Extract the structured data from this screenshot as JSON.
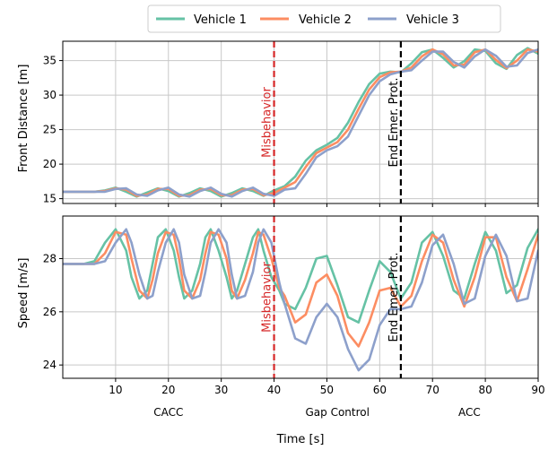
{
  "chart_data": {
    "type": "line",
    "xlabel": "Time [s]",
    "xlim": [
      0,
      90
    ],
    "xticks": [
      10,
      20,
      30,
      40,
      50,
      60,
      70,
      80,
      90
    ],
    "legend": {
      "placement": "top-center",
      "entries": [
        "Vehicle 1",
        "Vehicle 2",
        "Vehicle 3"
      ]
    },
    "colors": {
      "Vehicle 1": "#66c2a5",
      "Vehicle 2": "#fc8d62",
      "Vehicle 3": "#8da0cb",
      "misbehavior_line": "#d62728",
      "end_emergency_line": "#000000",
      "grid": "#c8c8c8"
    },
    "grid": true,
    "phases": [
      {
        "label": "CACC",
        "x": 20
      },
      {
        "label": "Gap Control",
        "x": 52
      },
      {
        "label": "ACC",
        "x": 77
      }
    ],
    "events": [
      {
        "label": "Misbehavior",
        "x": 40,
        "style": "dashed",
        "color": "#d62728"
      },
      {
        "label": "End Emer. Prot.",
        "x": 64,
        "style": "dashed",
        "color": "#000000"
      }
    ],
    "panels": [
      {
        "name": "front-distance",
        "ylabel": "Front Distance [m]",
        "ylim": [
          14.3,
          37.8
        ],
        "yticks": [
          15,
          20,
          25,
          30,
          35
        ],
        "series": [
          {
            "name": "Vehicle 1",
            "x": [
              0,
              2,
              4,
              6,
              8,
              10,
              12,
              14,
              16,
              18,
              20,
              22,
              24,
              26,
              28,
              30,
              32,
              34,
              36,
              38,
              40,
              42,
              44,
              46,
              48,
              50,
              52,
              54,
              56,
              58,
              60,
              62,
              64,
              66,
              68,
              70,
              72,
              74,
              76,
              78,
              80,
              82,
              84,
              86,
              88,
              90
            ],
            "y": [
              16.0,
              16.0,
              16.0,
              16.0,
              16.2,
              16.6,
              16.0,
              15.3,
              15.9,
              16.5,
              16.1,
              15.3,
              15.8,
              16.5,
              16.1,
              15.3,
              15.8,
              16.5,
              16.1,
              15.4,
              16.2,
              16.8,
              18.2,
              20.5,
              22.0,
              22.8,
              23.8,
              26.0,
              29.0,
              31.6,
              33.1,
              33.4,
              33.3,
              34.6,
              36.2,
              36.6,
              35.4,
              34.0,
              34.9,
              36.6,
              36.4,
              34.6,
              33.8,
              35.8,
              36.8,
              36.0
            ]
          },
          {
            "name": "Vehicle 2",
            "x": [
              0,
              2,
              4,
              6,
              8,
              10,
              12,
              14,
              16,
              18,
              20,
              22,
              24,
              26,
              28,
              30,
              32,
              34,
              36,
              38,
              40,
              42,
              44,
              46,
              48,
              50,
              52,
              54,
              56,
              58,
              60,
              62,
              64,
              66,
              68,
              70,
              72,
              74,
              76,
              78,
              80,
              82,
              84,
              86,
              88,
              90
            ],
            "y": [
              16.0,
              16.0,
              16.0,
              16.0,
              16.1,
              16.5,
              16.3,
              15.4,
              15.6,
              16.4,
              16.4,
              15.4,
              15.5,
              16.3,
              16.4,
              15.5,
              15.5,
              16.3,
              16.4,
              15.5,
              15.8,
              16.6,
              17.4,
              19.6,
              21.6,
              22.4,
              23.2,
              25.0,
              28.0,
              30.8,
              32.6,
              33.3,
              33.4,
              34.0,
              35.6,
              36.6,
              35.9,
              34.3,
              34.4,
              36.2,
              36.6,
              35.1,
              33.9,
              35.0,
              36.6,
              36.3
            ]
          },
          {
            "name": "Vehicle 3",
            "x": [
              0,
              2,
              4,
              6,
              8,
              10,
              12,
              14,
              16,
              18,
              20,
              22,
              24,
              26,
              28,
              30,
              32,
              34,
              36,
              38,
              40,
              42,
              44,
              46,
              48,
              50,
              52,
              54,
              56,
              58,
              60,
              62,
              64,
              66,
              68,
              70,
              72,
              74,
              76,
              78,
              80,
              82,
              84,
              86,
              88,
              90
            ],
            "y": [
              16.0,
              16.0,
              16.0,
              16.0,
              16.0,
              16.4,
              16.5,
              15.6,
              15.4,
              16.2,
              16.6,
              15.6,
              15.3,
              16.1,
              16.6,
              15.7,
              15.3,
              16.1,
              16.6,
              15.7,
              15.4,
              16.3,
              16.5,
              18.6,
              21.0,
              22.0,
              22.6,
              24.0,
              27.0,
              30.0,
              32.0,
              33.0,
              33.4,
              33.6,
              35.0,
              36.3,
              36.3,
              34.8,
              34.0,
              35.6,
              36.6,
              35.7,
              34.1,
              34.3,
              36.1,
              36.6
            ]
          }
        ]
      },
      {
        "name": "speed",
        "ylabel": "Speed [m/s]",
        "ylim": [
          23.5,
          29.6
        ],
        "yticks": [
          24,
          26,
          28
        ],
        "series": [
          {
            "name": "Vehicle 1",
            "x": [
              0,
              4,
              6,
              8,
              10,
              12,
              13,
              14.5,
              16,
              17,
              18,
              19.5,
              21,
              22,
              23,
              24.5,
              26,
              27,
              28,
              29.5,
              31,
              32,
              33,
              34.5,
              36,
              37,
              38,
              39.5,
              41,
              42,
              44,
              46,
              48,
              50,
              52,
              54,
              56,
              58,
              60,
              62,
              64,
              66,
              68,
              70,
              72,
              74,
              76,
              78,
              80,
              82,
              84,
              86,
              88,
              90
            ],
            "y": [
              27.8,
              27.8,
              27.9,
              28.6,
              29.1,
              28.3,
              27.3,
              26.5,
              26.8,
              27.8,
              28.8,
              29.1,
              28.3,
              27.3,
              26.5,
              26.8,
              27.8,
              28.8,
              29.1,
              28.3,
              27.3,
              26.5,
              26.8,
              27.8,
              28.8,
              29.1,
              28.3,
              27.3,
              26.8,
              26.3,
              26.1,
              26.9,
              28.0,
              28.1,
              27.0,
              25.8,
              25.6,
              26.8,
              27.9,
              27.5,
              26.5,
              27.1,
              28.6,
              29.0,
              28.1,
              26.8,
              26.5,
              27.8,
              29.0,
              28.3,
              26.7,
              27.0,
              28.4,
              29.1
            ]
          },
          {
            "name": "Vehicle 2",
            "x": [
              0,
              4,
              6,
              8,
              10,
              12,
              13,
              14.5,
              16,
              17,
              18,
              19.5,
              21,
              22,
              23,
              24.5,
              26,
              27,
              28,
              29.5,
              31,
              32,
              33,
              34.5,
              36,
              37,
              38,
              39.5,
              41,
              42,
              44,
              46,
              48,
              50,
              52,
              54,
              56,
              58,
              60,
              62,
              64,
              66,
              68,
              70,
              72,
              74,
              76,
              78,
              80,
              82,
              84,
              86,
              88,
              90
            ],
            "y": [
              27.8,
              27.8,
              27.8,
              28.2,
              29.0,
              28.9,
              28.0,
              26.8,
              26.5,
              27.2,
              28.2,
              29.0,
              28.9,
              28.0,
              26.8,
              26.5,
              27.2,
              28.2,
              29.0,
              28.9,
              28.0,
              26.8,
              26.5,
              27.2,
              28.2,
              29.0,
              28.9,
              28.0,
              26.9,
              26.6,
              25.6,
              25.9,
              27.1,
              27.4,
              26.6,
              25.2,
              24.7,
              25.6,
              26.8,
              26.9,
              26.2,
              26.6,
              27.9,
              28.9,
              28.6,
              27.2,
              26.2,
              27.3,
              28.8,
              28.8,
              27.3,
              26.4,
              27.6,
              28.9
            ]
          },
          {
            "name": "Vehicle 3",
            "x": [
              0,
              4,
              6,
              8,
              10,
              12,
              13,
              14.5,
              16,
              17,
              18,
              19.5,
              21,
              22,
              23,
              24.5,
              26,
              27,
              28,
              29.5,
              31,
              32,
              33,
              34.5,
              36,
              37,
              38,
              39.5,
              41,
              42,
              44,
              46,
              48,
              50,
              52,
              54,
              56,
              58,
              60,
              62,
              64,
              66,
              68,
              70,
              72,
              74,
              76,
              78,
              80,
              82,
              84,
              86,
              88,
              90
            ],
            "y": [
              27.8,
              27.8,
              27.8,
              27.9,
              28.6,
              29.1,
              28.6,
              27.4,
              26.5,
              26.6,
              27.5,
              28.6,
              29.1,
              28.6,
              27.4,
              26.5,
              26.6,
              27.5,
              28.6,
              29.1,
              28.6,
              27.4,
              26.5,
              26.6,
              27.5,
              28.6,
              29.1,
              28.6,
              27.1,
              26.3,
              25.0,
              24.8,
              25.8,
              26.3,
              25.8,
              24.6,
              23.8,
              24.2,
              25.5,
              26.1,
              26.1,
              26.2,
              27.1,
              28.5,
              28.9,
              27.8,
              26.3,
              26.5,
              28.1,
              28.9,
              28.1,
              26.4,
              26.5,
              28.3
            ]
          }
        ]
      }
    ]
  }
}
